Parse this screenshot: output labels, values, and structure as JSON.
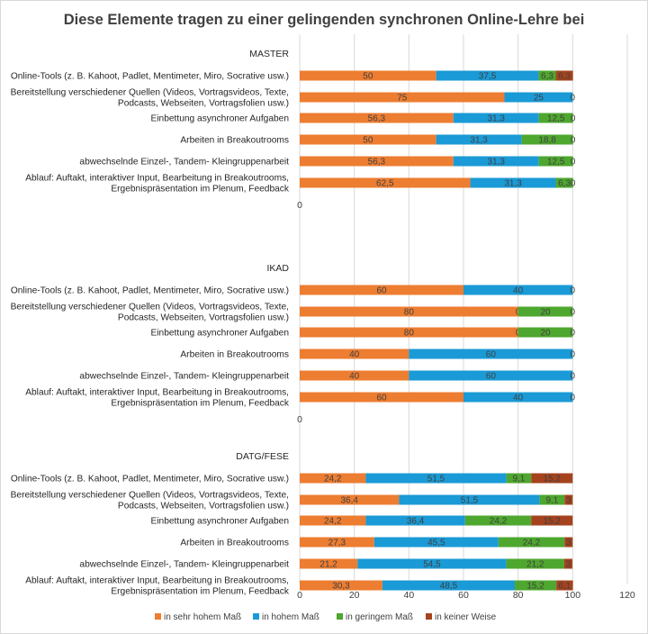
{
  "chart_data": {
    "type": "bar",
    "stacked": true,
    "orientation": "horizontal",
    "title": "Diese Elemente tragen zu einer gelingenden synchronen Online-Lehre bei",
    "xlim": [
      0,
      120
    ],
    "x_ticks": [
      "0",
      "20",
      "40",
      "60",
      "80",
      "100",
      "120"
    ],
    "grid": true,
    "legend_position": "bottom",
    "series": [
      {
        "name": "in sehr hohem Maß",
        "color": "#ed7d31"
      },
      {
        "name": "in hohem Maß",
        "color": "#1a9ad6"
      },
      {
        "name": "in geringem Maß",
        "color": "#4ea72e"
      },
      {
        "name": "in keiner Weise",
        "color": "#a5431e"
      }
    ],
    "groups": [
      {
        "name": "MASTER",
        "separator_label": "0",
        "rows": [
          {
            "label": [
              "Online-Tools (z. B. Kahoot, Padlet, Mentimeter, Miro, Socrative usw.)"
            ],
            "values": [
              50,
              37.5,
              6.3,
              6.3
            ],
            "labels": [
              "50",
              "37,5",
              "6,3",
              "6,3"
            ]
          },
          {
            "label": [
              "Bereitstellung verschiedener Quellen (Videos, Vortragsvideos, Texte,",
              "Podcasts, Webseiten, Vortragsfolien usw.)"
            ],
            "values": [
              75,
              25,
              0,
              0
            ],
            "labels": [
              "75",
              "25",
              "0",
              ""
            ]
          },
          {
            "label": [
              "Einbettung asynchroner Aufgaben"
            ],
            "values": [
              56.3,
              31.3,
              12.5,
              0
            ],
            "labels": [
              "56,3",
              "31,3",
              "12,5",
              "0"
            ]
          },
          {
            "label": [
              "Arbeiten in Breakoutrooms"
            ],
            "values": [
              50,
              31.3,
              18.8,
              0
            ],
            "labels": [
              "50",
              "31,3",
              "18,8",
              "0"
            ]
          },
          {
            "label": [
              "abwechselnde Einzel-, Tandem- Kleingruppenarbeit"
            ],
            "values": [
              56.3,
              31.3,
              12.5,
              0
            ],
            "labels": [
              "56,3",
              "31,3",
              "12,5",
              "0"
            ]
          },
          {
            "label": [
              "Ablauf: Auftakt, interaktiver Input, Bearbeitung in Breakoutrooms,",
              "Ergebnispräsentation im Plenum, Feedback"
            ],
            "values": [
              62.5,
              31.3,
              6.3,
              0
            ],
            "labels": [
              "62,5",
              "31,3",
              "6,3",
              "0"
            ]
          }
        ]
      },
      {
        "name": "IKAD",
        "separator_label": "0",
        "rows": [
          {
            "label": [
              "Online-Tools (z. B. Kahoot, Padlet, Mentimeter, Miro, Socrative usw.)"
            ],
            "values": [
              60,
              40,
              0,
              0
            ],
            "labels": [
              "60",
              "40",
              "",
              "0"
            ]
          },
          {
            "label": [
              "Bereitstellung verschiedener Quellen (Videos, Vortragsvideos, Texte,",
              "Podcasts, Webseiten, Vortragsfolien usw.)"
            ],
            "values": [
              80,
              0,
              20,
              0
            ],
            "labels": [
              "80",
              "0",
              "20",
              "0"
            ]
          },
          {
            "label": [
              "Einbettung asynchroner Aufgaben"
            ],
            "values": [
              80,
              0,
              20,
              0
            ],
            "labels": [
              "80",
              "0",
              "20",
              "0"
            ]
          },
          {
            "label": [
              "Arbeiten in Breakoutrooms"
            ],
            "values": [
              40,
              60,
              0,
              0
            ],
            "labels": [
              "40",
              "60",
              "",
              "0"
            ]
          },
          {
            "label": [
              "abwechselnde Einzel-, Tandem- Kleingruppenarbeit"
            ],
            "values": [
              40,
              60,
              0,
              0
            ],
            "labels": [
              "40",
              "60",
              "",
              "0"
            ]
          },
          {
            "label": [
              "Ablauf: Auftakt, interaktiver Input, Bearbeitung in Breakoutrooms,",
              "Ergebnispräsentation im Plenum, Feedback"
            ],
            "values": [
              60,
              40,
              0,
              0
            ],
            "labels": [
              "60",
              "40",
              "",
              "0"
            ]
          }
        ]
      },
      {
        "name": "DATG/FESE",
        "separator_label": "",
        "rows": [
          {
            "label": [
              "Online-Tools (z. B. Kahoot, Padlet, Mentimeter, Miro, Socrative usw.)"
            ],
            "values": [
              24.2,
              51.5,
              9.1,
              15.2
            ],
            "labels": [
              "24,2",
              "51,5",
              "9,1",
              "15,2"
            ]
          },
          {
            "label": [
              "Bereitstellung verschiedener Quellen (Videos, Vortragsvideos, Texte,",
              "Podcasts, Webseiten, Vortragsfolien usw.)"
            ],
            "values": [
              36.4,
              51.5,
              9.1,
              3
            ],
            "labels": [
              "36,4",
              "51,5",
              "9,1",
              "3"
            ]
          },
          {
            "label": [
              "Einbettung asynchroner Aufgaben"
            ],
            "values": [
              24.2,
              36.4,
              24.2,
              15.2
            ],
            "labels": [
              "24,2",
              "36,4",
              "24,2",
              "15,2"
            ]
          },
          {
            "label": [
              "Arbeiten in Breakoutrooms"
            ],
            "values": [
              27.3,
              45.5,
              24.2,
              3
            ],
            "labels": [
              "27,3",
              "45,5",
              "24,2",
              "3"
            ]
          },
          {
            "label": [
              "abwechselnde Einzel-, Tandem- Kleingruppenarbeit"
            ],
            "values": [
              21.2,
              54.5,
              21.2,
              3
            ],
            "labels": [
              "21,2",
              "54,5",
              "21,2",
              "3"
            ]
          },
          {
            "label": [
              "Ablauf: Auftakt, interaktiver Input, Bearbeitung in Breakoutrooms,",
              "Ergebnispräsentation im Plenum, Feedback"
            ],
            "values": [
              30.3,
              48.5,
              15.2,
              6.1
            ],
            "labels": [
              "30,3",
              "48,5",
              "15,2",
              "6,1"
            ]
          }
        ]
      }
    ]
  }
}
